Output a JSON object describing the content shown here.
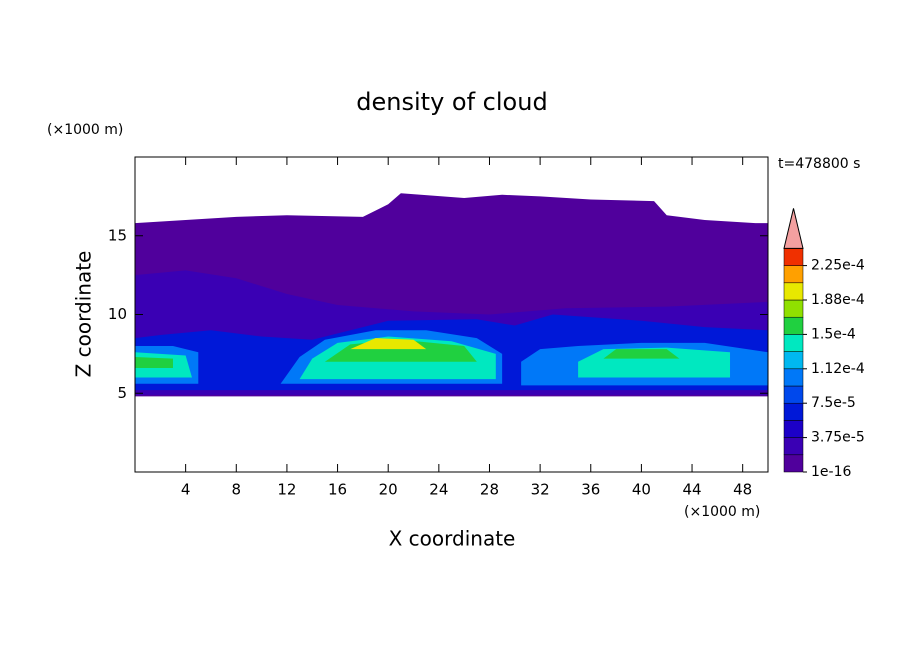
{
  "chart_data": {
    "type": "contour",
    "title": "density of cloud",
    "x_label": "X coordinate",
    "y_label": "Z coordinate",
    "x_unit": "(×1000 m)",
    "y_unit": "(×1000 m)",
    "time_label": "t=478800 s",
    "xlim": [
      0,
      50
    ],
    "ylim": [
      0,
      20
    ],
    "xticks": [
      4,
      8,
      12,
      16,
      20,
      24,
      28,
      32,
      36,
      40,
      44,
      48
    ],
    "yticks": [
      5,
      10,
      15
    ],
    "levels": [
      1e-16,
      1.875e-05,
      3.75e-05,
      5.625e-05,
      7.5e-05,
      9.375e-05,
      0.0001125,
      0.00013125,
      0.00015,
      0.00016875,
      0.0001875,
      0.00020625,
      0.000225
    ],
    "colors": [
      "#50009c",
      "#3a00b4",
      "#1c00c8",
      "#0018d8",
      "#0048ec",
      "#0078f8",
      "#00b8f0",
      "#00e8c0",
      "#20d040",
      "#90e000",
      "#e8e800",
      "#ffa000",
      "#f03000"
    ],
    "over_color": "#f4a0a0",
    "cbticks": [
      {
        "value": 1e-16,
        "label": "1e-16"
      },
      {
        "value": 3.75e-05,
        "label": "3.75e-5"
      },
      {
        "value": 7.5e-05,
        "label": "7.5e-5"
      },
      {
        "value": 0.0001125,
        "label": "1.12e-4"
      },
      {
        "value": 0.00015,
        "label": "1.5e-4"
      },
      {
        "value": 0.0001875,
        "label": "1.88e-4"
      },
      {
        "value": 0.000225,
        "label": "2.25e-4"
      }
    ],
    "contours": [
      {
        "level": 0,
        "x": [
          0,
          50,
          50,
          49,
          45,
          42,
          41,
          36,
          32,
          29,
          26,
          21,
          20,
          18,
          12,
          8,
          4,
          0
        ],
        "z": [
          4.8,
          4.8,
          15.8,
          15.8,
          16,
          16.3,
          17.2,
          17.3,
          17.5,
          17.6,
          17.4,
          17.7,
          17,
          16.2,
          16.3,
          16.2,
          16,
          15.8
        ]
      },
      {
        "level": 1,
        "x": [
          0,
          50,
          50,
          42,
          34,
          28,
          22,
          16,
          12,
          8,
          4,
          0
        ],
        "z": [
          4.9,
          4.9,
          10.8,
          10.5,
          10.4,
          10,
          10.2,
          10.6,
          11.3,
          12.3,
          12.8,
          12.5
        ]
      },
      {
        "level": 3,
        "x": [
          0,
          50,
          50,
          45,
          40,
          33,
          30,
          27,
          20,
          14,
          10,
          6,
          2,
          0
        ],
        "z": [
          5.2,
          5.2,
          9,
          9.2,
          9.6,
          10,
          9.3,
          9.7,
          9.6,
          8.4,
          8.6,
          9,
          8.7,
          8.5
        ]
      },
      {
        "level": 5,
        "x": [
          0,
          5,
          5,
          3,
          0
        ],
        "z": [
          5.6,
          5.6,
          7.6,
          8,
          8
        ]
      },
      {
        "level": 5,
        "x": [
          11.5,
          29,
          29,
          27,
          23,
          19,
          15,
          13
        ],
        "z": [
          5.6,
          5.6,
          7.5,
          8.5,
          9,
          9,
          8.4,
          7.3
        ]
      },
      {
        "level": 5,
        "x": [
          30.5,
          50,
          50,
          45,
          40,
          35,
          32,
          30.5
        ],
        "z": [
          5.5,
          5.5,
          7.6,
          8.2,
          8.2,
          8,
          7.8,
          7
        ]
      },
      {
        "level": 7,
        "x": [
          0,
          4.5,
          4,
          0
        ],
        "z": [
          6,
          6,
          7.4,
          7.6
        ]
      },
      {
        "level": 7,
        "x": [
          13,
          28.5,
          28.5,
          25,
          20,
          16,
          14
        ],
        "z": [
          5.9,
          5.9,
          7.5,
          8.3,
          8.6,
          8.2,
          7.2
        ]
      },
      {
        "level": 7,
        "x": [
          35,
          47,
          47,
          42,
          37,
          35
        ],
        "z": [
          6,
          6,
          7.6,
          7.9,
          7.8,
          7
        ]
      },
      {
        "level": 8,
        "x": [
          0,
          3,
          3,
          0
        ],
        "z": [
          6.6,
          6.6,
          7.2,
          7.3
        ]
      },
      {
        "level": 8,
        "x": [
          15,
          27,
          26,
          21,
          17
        ],
        "z": [
          7,
          7,
          8,
          8.4,
          8.1
        ]
      },
      {
        "level": 8,
        "x": [
          37,
          43,
          42,
          38
        ],
        "z": [
          7.2,
          7.2,
          7.8,
          7.8
        ]
      },
      {
        "level": 10,
        "x": [
          17,
          23,
          22,
          19
        ],
        "z": [
          7.8,
          7.8,
          8.4,
          8.5
        ]
      }
    ]
  }
}
